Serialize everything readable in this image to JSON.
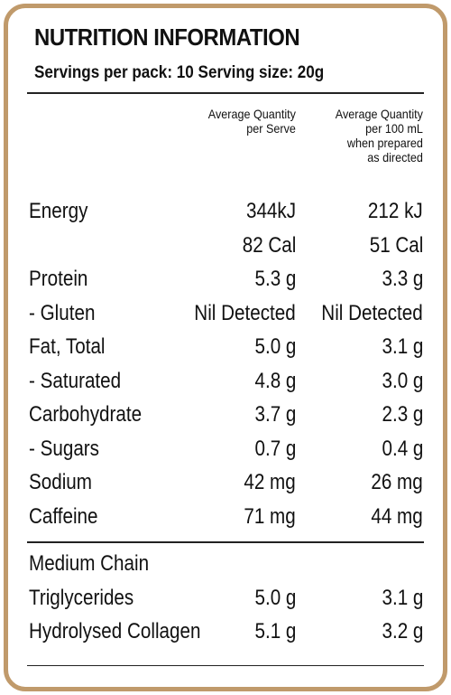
{
  "title": "NUTRITION INFORMATION",
  "servings_line": "Servings per pack: 10   Serving size: 20g",
  "column_headers": {
    "per_serve": "Average Quantity\nper Serve",
    "per_100ml": "Average Quantity\nper 100 mL\nwhen prepared\nas directed"
  },
  "rows": [
    {
      "name": "Energy",
      "per_serve": "344kJ",
      "per_100ml": "212 kJ"
    },
    {
      "name": "",
      "per_serve": "82 Cal",
      "per_100ml": "51 Cal"
    },
    {
      "name": "Protein",
      "per_serve": "5.3 g",
      "per_100ml": "3.3 g"
    },
    {
      "name": " - Gluten",
      "per_serve": "Nil Detected",
      "per_100ml": "Nil Detected"
    },
    {
      "name": "Fat, Total",
      "per_serve": "5.0 g",
      "per_100ml": "3.1 g"
    },
    {
      "name": " - Saturated",
      "per_serve": "4.8 g",
      "per_100ml": "3.0 g"
    },
    {
      "name": "Carbohydrate",
      "per_serve": "3.7 g",
      "per_100ml": "2.3 g"
    },
    {
      "name": " - Sugars",
      "per_serve": "0.7 g",
      "per_100ml": "0.4 g"
    },
    {
      "name": "Sodium",
      "per_serve": "42 mg",
      "per_100ml": "26 mg"
    },
    {
      "name": "Caffeine",
      "per_serve": "71 mg",
      "per_100ml": "44 mg"
    }
  ],
  "extra_rows": [
    {
      "name": "Medium Chain",
      "per_serve": "",
      "per_100ml": ""
    },
    {
      "name": "Triglycerides",
      "per_serve": "5.0 g",
      "per_100ml": "3.1 g"
    },
    {
      "name": "Hydrolysed Collagen",
      "per_serve": "5.1 g",
      "per_100ml": "3.2 g"
    }
  ],
  "colors": {
    "border": "#c09a6b",
    "text": "#111111"
  }
}
